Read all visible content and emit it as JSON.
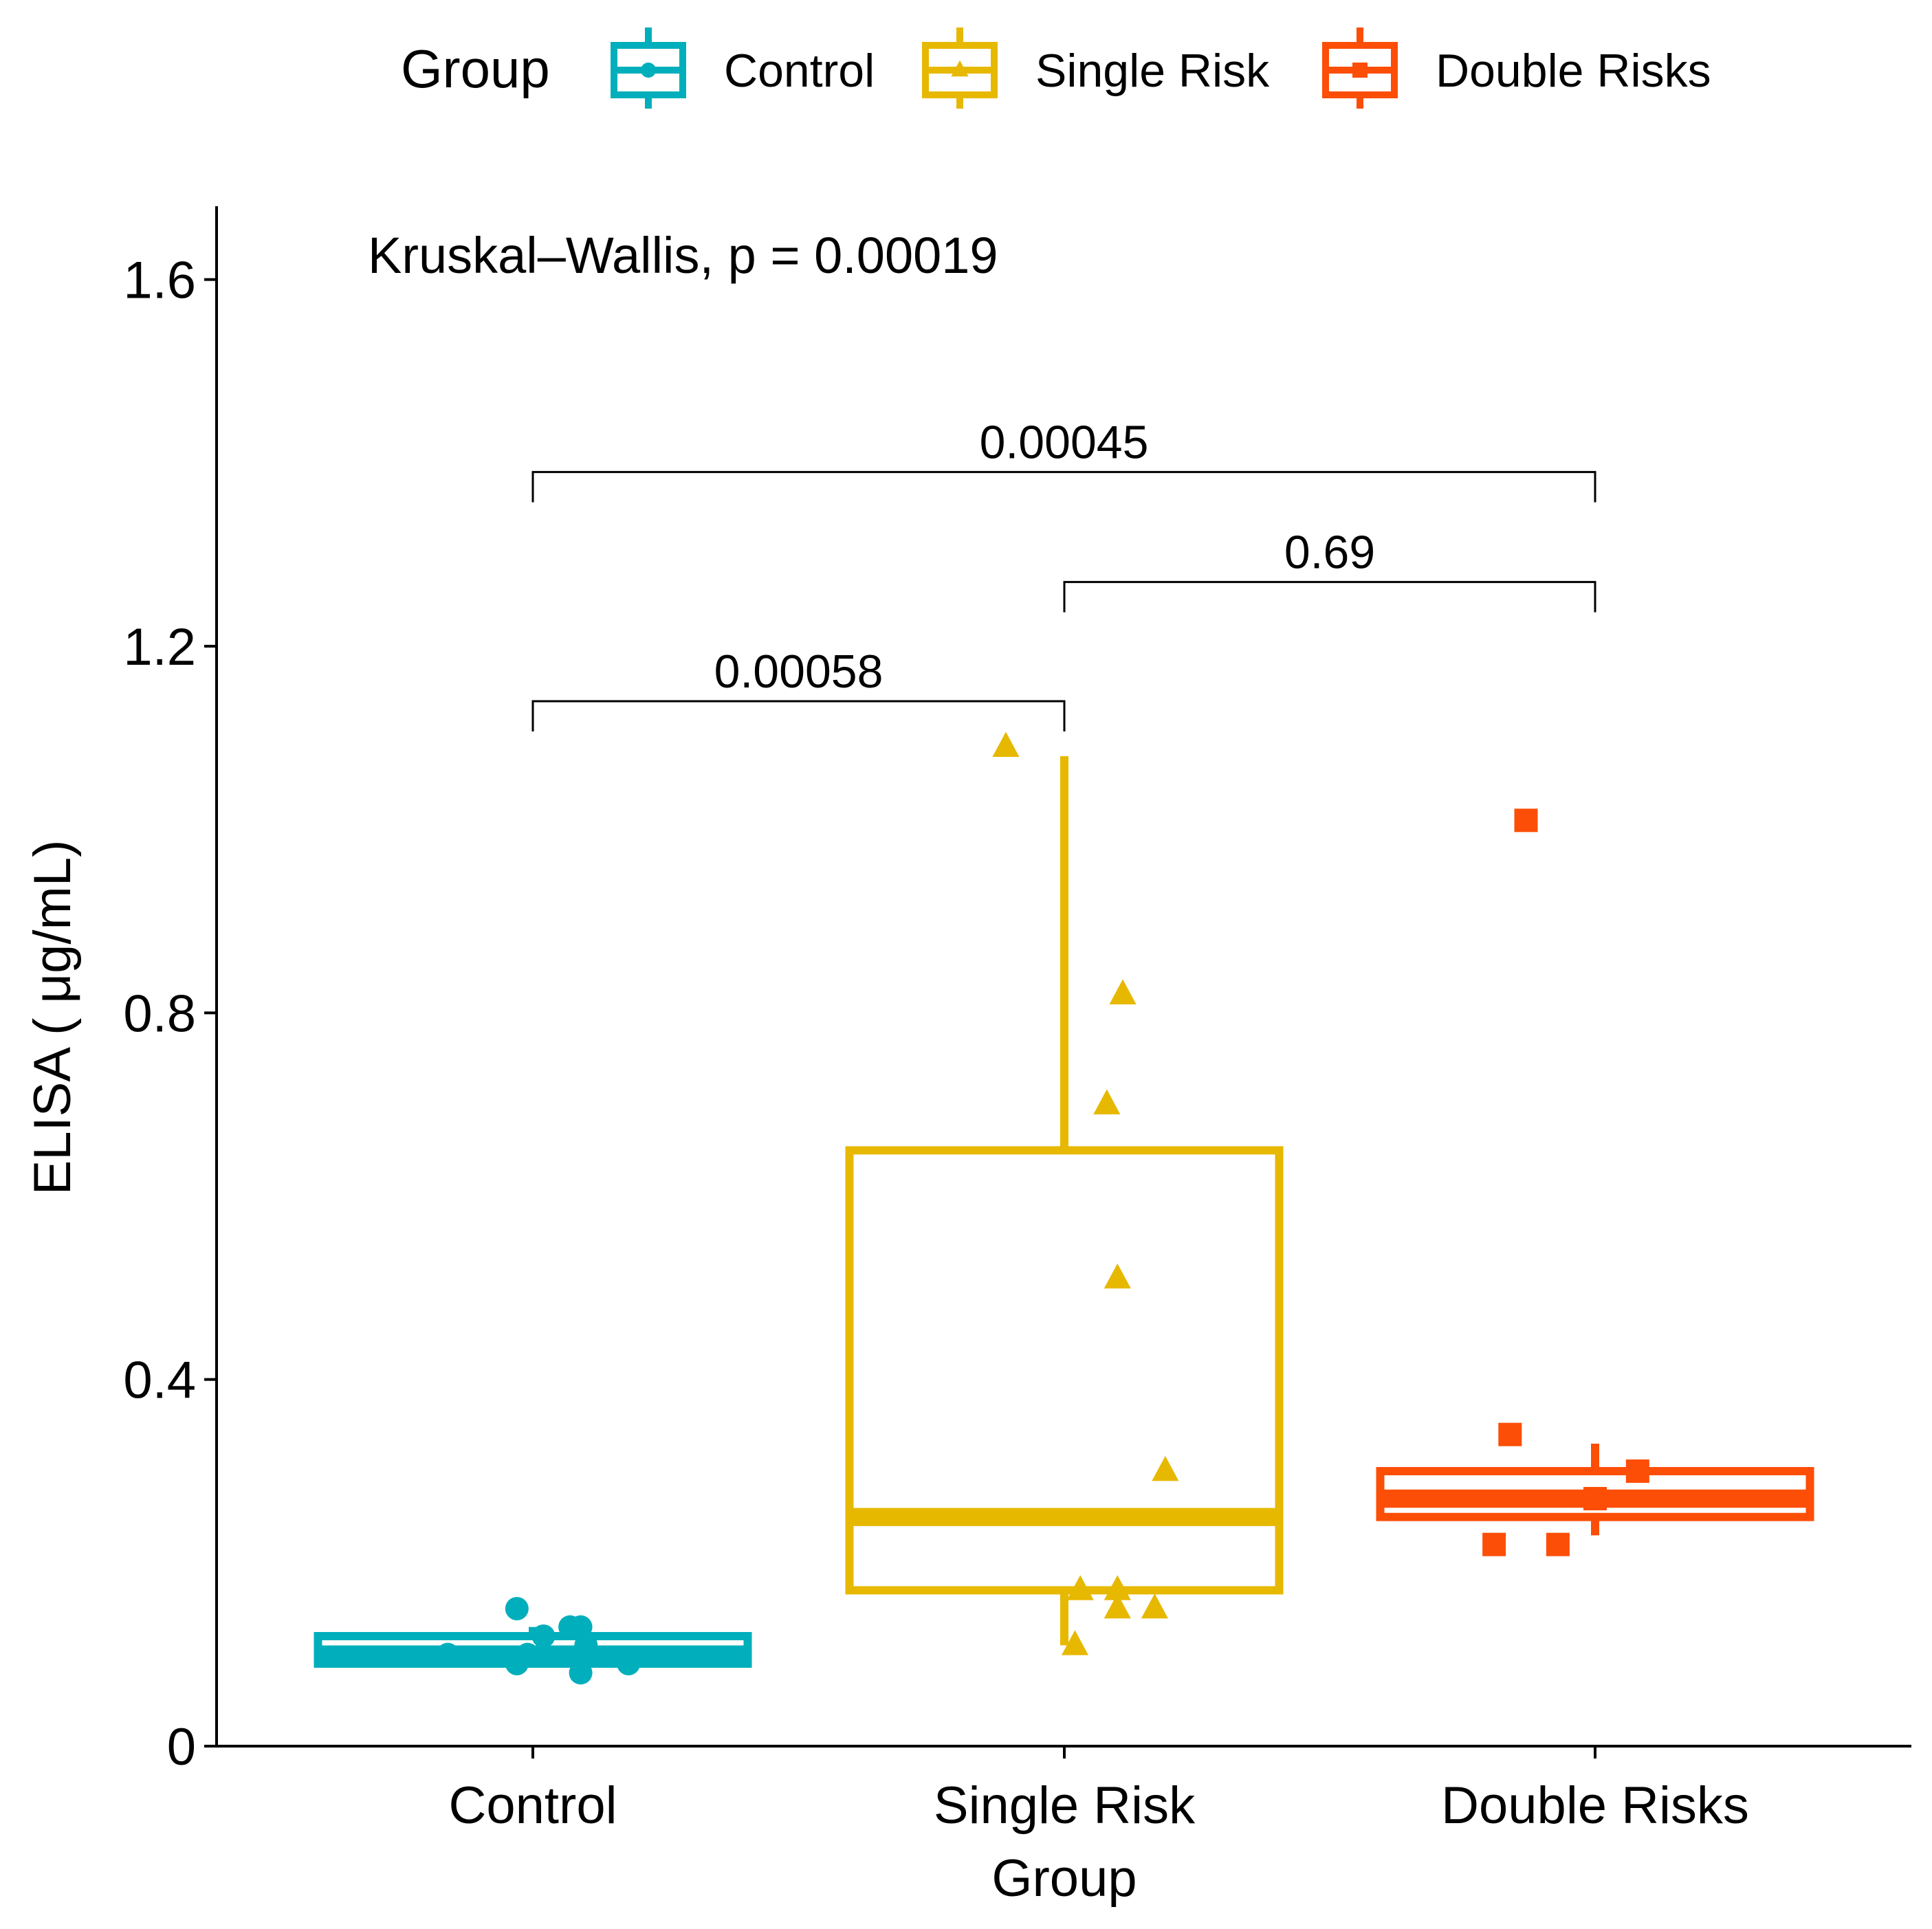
{
  "chart_data": {
    "type": "box",
    "title": "",
    "xlabel": "Group",
    "ylabel": "ELISA ( μg/mL)",
    "ylim": [
      0,
      1.68
    ],
    "yticks": [
      0,
      0.4,
      0.8,
      1.2,
      1.6
    ],
    "ytick_labels": [
      "0",
      "0.4",
      "0.8",
      "1.2",
      "1.6"
    ],
    "legend": {
      "title": "Group",
      "position": "top"
    },
    "annotation": "Kruskal–Wallis, p = 0.00019",
    "categories": [
      "Control",
      "Single Risk",
      "Double Risks"
    ],
    "series": [
      {
        "name": "Control",
        "color": "#00AFBB",
        "marker": "circle",
        "box": {
          "min": 0.09,
          "q1": 0.09,
          "median": 0.1,
          "q3": 0.12,
          "max": 0.13
        },
        "points": [
          [
            -0.03,
            0.15
          ],
          [
            0.07,
            0.13
          ],
          [
            0.09,
            0.13
          ],
          [
            -0.16,
            0.1
          ],
          [
            0.02,
            0.12
          ],
          [
            -0.01,
            0.1
          ],
          [
            0.1,
            0.11
          ],
          [
            -0.03,
            0.09
          ],
          [
            0.09,
            0.08
          ],
          [
            0.18,
            0.09
          ]
        ]
      },
      {
        "name": "Single Risk",
        "color": "#E7B800",
        "marker": "triangle",
        "box": {
          "min": 0.11,
          "q1": 0.17,
          "median": 0.25,
          "q3": 0.65,
          "max": 1.08
        },
        "points": [
          [
            -0.11,
            1.09
          ],
          [
            0.11,
            0.82
          ],
          [
            0.08,
            0.7
          ],
          [
            0.1,
            0.51
          ],
          [
            0.19,
            0.3
          ],
          [
            0.03,
            0.17
          ],
          [
            0.1,
            0.17
          ],
          [
            0.17,
            0.15
          ],
          [
            0.1,
            0.15
          ],
          [
            0.02,
            0.11
          ]
        ]
      },
      {
        "name": "Double Risks",
        "color": "#FC4E07",
        "marker": "square",
        "box": {
          "min": 0.23,
          "q1": 0.25,
          "median": 0.27,
          "q3": 0.3,
          "max": 0.33
        },
        "points": [
          [
            -0.13,
            1.01
          ],
          [
            -0.16,
            0.34
          ],
          [
            -0.19,
            0.22
          ],
          [
            -0.07,
            0.22
          ],
          [
            0.08,
            0.3
          ],
          [
            0.0,
            0.27
          ]
        ]
      }
    ],
    "comparisons": [
      {
        "from": "Control",
        "to": "Single Risk",
        "label": "0.00058",
        "y": 1.14
      },
      {
        "from": "Single Risk",
        "to": "Double Risks",
        "label": "0.69",
        "y": 1.27
      },
      {
        "from": "Control",
        "to": "Double Risks",
        "label": "0.00045",
        "y": 1.39
      }
    ]
  }
}
